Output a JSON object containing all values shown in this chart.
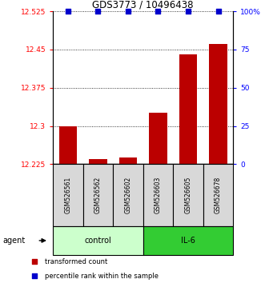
{
  "title": "GDS3773 / 10496438",
  "samples": [
    "GSM526561",
    "GSM526562",
    "GSM526602",
    "GSM526603",
    "GSM526605",
    "GSM526678"
  ],
  "transformed_counts": [
    12.3,
    12.235,
    12.238,
    12.326,
    12.44,
    12.461
  ],
  "percentile_ranks": [
    100,
    100,
    100,
    100,
    100,
    100
  ],
  "ylim_left": [
    12.225,
    12.525
  ],
  "ylim_right": [
    0,
    100
  ],
  "yticks_left": [
    12.225,
    12.3,
    12.375,
    12.45,
    12.525
  ],
  "yticks_right": [
    0,
    25,
    50,
    75,
    100
  ],
  "ytick_labels_right": [
    "0",
    "25",
    "50",
    "75",
    "100%"
  ],
  "bar_color": "#bb0000",
  "dot_color": "#0000cc",
  "control_color": "#ccffcc",
  "il6_color": "#33cc33",
  "bar_baseline": 12.225,
  "bar_width": 0.6,
  "legend_items": [
    "transformed count",
    "percentile rank within the sample"
  ],
  "legend_colors": [
    "#bb0000",
    "#0000cc"
  ]
}
